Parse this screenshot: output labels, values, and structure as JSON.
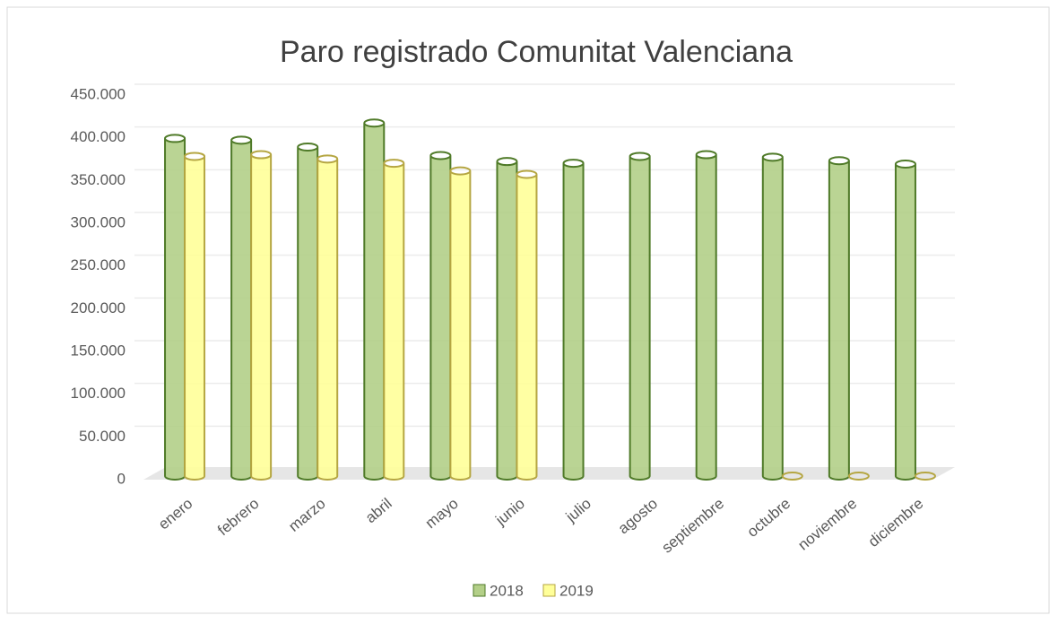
{
  "chart_data": {
    "type": "bar",
    "title": "Paro registrado Comunitat Valenciana",
    "categories": [
      "enero",
      "febrero",
      "marzo",
      "abril",
      "mayo",
      "junio",
      "julio",
      "agosto",
      "septiembre",
      "octubre",
      "noviembre",
      "diciembre"
    ],
    "series": [
      {
        "name": "2018",
        "color": "#b3cf88",
        "values": [
          395000,
          393000,
          385000,
          413000,
          375000,
          368000,
          366000,
          374000,
          376000,
          373000,
          369000,
          365000
        ]
      },
      {
        "name": "2019",
        "color": "#ffff99",
        "values": [
          374000,
          376000,
          371000,
          366000,
          357000,
          353000,
          null,
          null,
          null,
          0,
          0,
          0
        ]
      }
    ],
    "ylim": [
      0,
      450000
    ],
    "yticks": [
      0,
      {
        "value": 50000,
        "label": "50.000"
      },
      {
        "value": 100000,
        "label": "100.000"
      },
      {
        "value": 150000,
        "label": "150.000"
      },
      {
        "value": 200000,
        "label": "200.000"
      },
      {
        "value": 250000,
        "label": "250.000"
      },
      {
        "value": 300000,
        "label": "300.000"
      },
      {
        "value": 350000,
        "label": "350.000"
      },
      {
        "value": 400000,
        "label": "400.000"
      },
      {
        "value": 450000,
        "label": "450.000"
      }
    ],
    "grid": true
  }
}
